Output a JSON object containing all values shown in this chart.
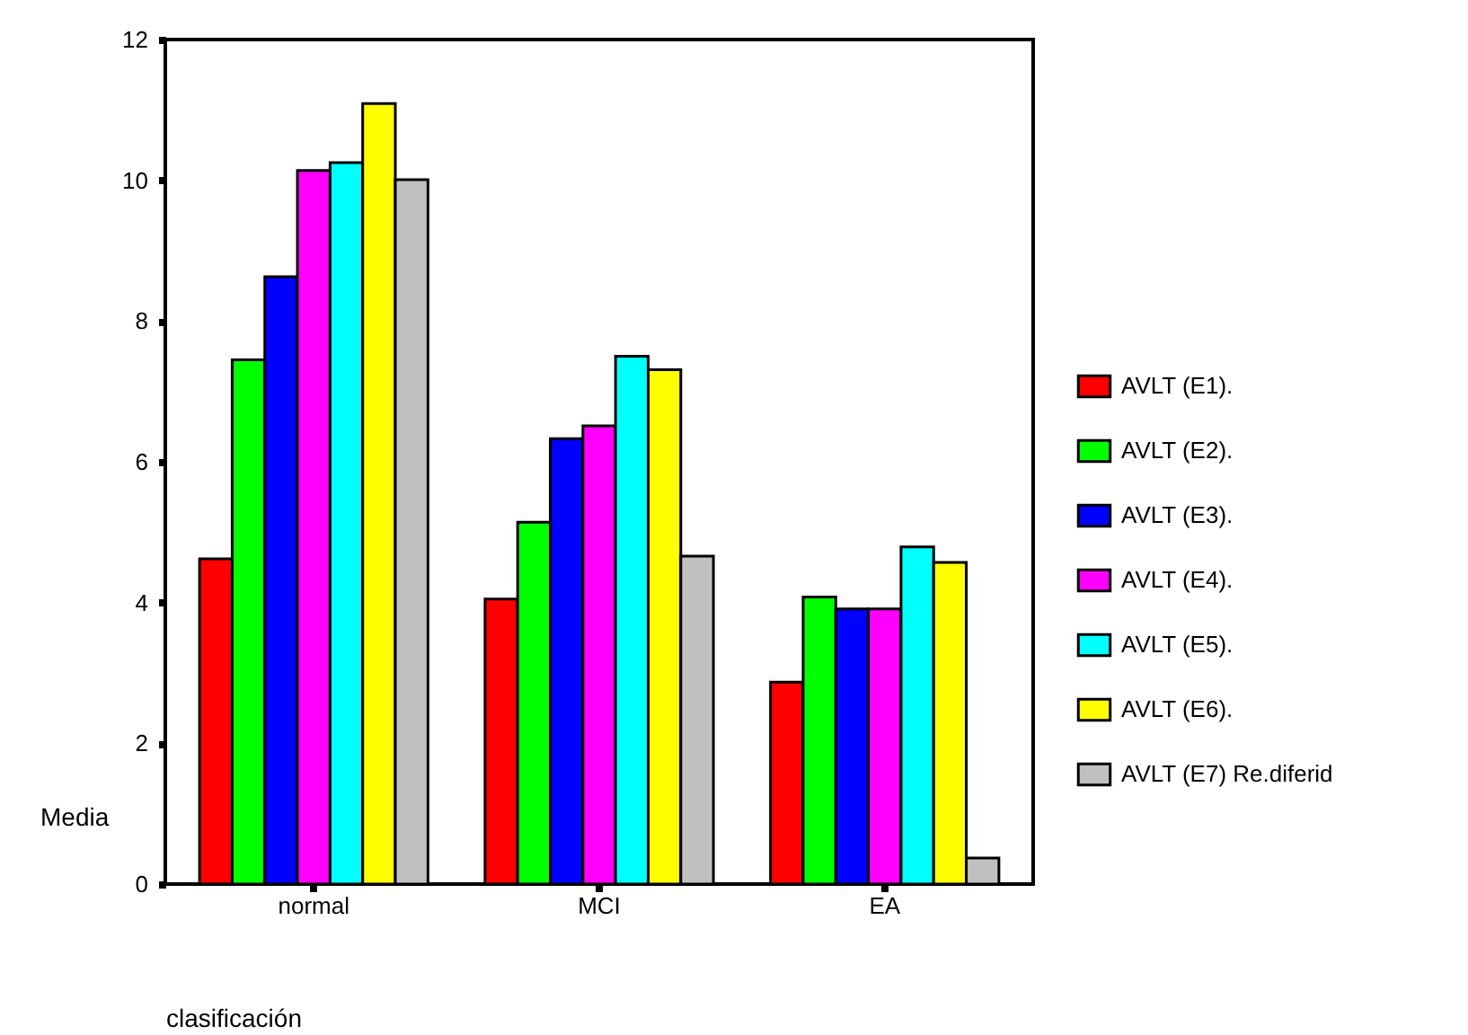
{
  "chart_data": {
    "type": "bar",
    "xlabel": "clasificación",
    "ylabel": "Media",
    "categories": [
      "normal",
      "MCI",
      "EA"
    ],
    "ylim": [
      0,
      12
    ],
    "yticks": [
      0,
      2,
      4,
      6,
      8,
      10,
      12
    ],
    "grid": false,
    "legend": "right",
    "series": [
      {
        "name": "AVLT (E1).",
        "color": "#ff0000",
        "values": [
          4.62,
          4.05,
          2.87
        ]
      },
      {
        "name": "AVLT (E2).",
        "color": "#00ff00",
        "values": [
          7.45,
          5.14,
          4.08
        ]
      },
      {
        "name": "AVLT (E3).",
        "color": "#0000ff",
        "values": [
          8.63,
          6.33,
          3.91
        ]
      },
      {
        "name": "AVLT (E4).",
        "color": "#ff00ff",
        "values": [
          10.14,
          6.51,
          3.91
        ]
      },
      {
        "name": "AVLT (E5).",
        "color": "#00ffff",
        "values": [
          10.25,
          7.5,
          4.79
        ]
      },
      {
        "name": "AVLT (E6).",
        "color": "#ffff00",
        "values": [
          11.09,
          7.31,
          4.57
        ]
      },
      {
        "name": "AVLT (E7) Re.diferid",
        "color": "#c0c0c0",
        "values": [
          10.01,
          4.66,
          0.37
        ]
      }
    ]
  }
}
